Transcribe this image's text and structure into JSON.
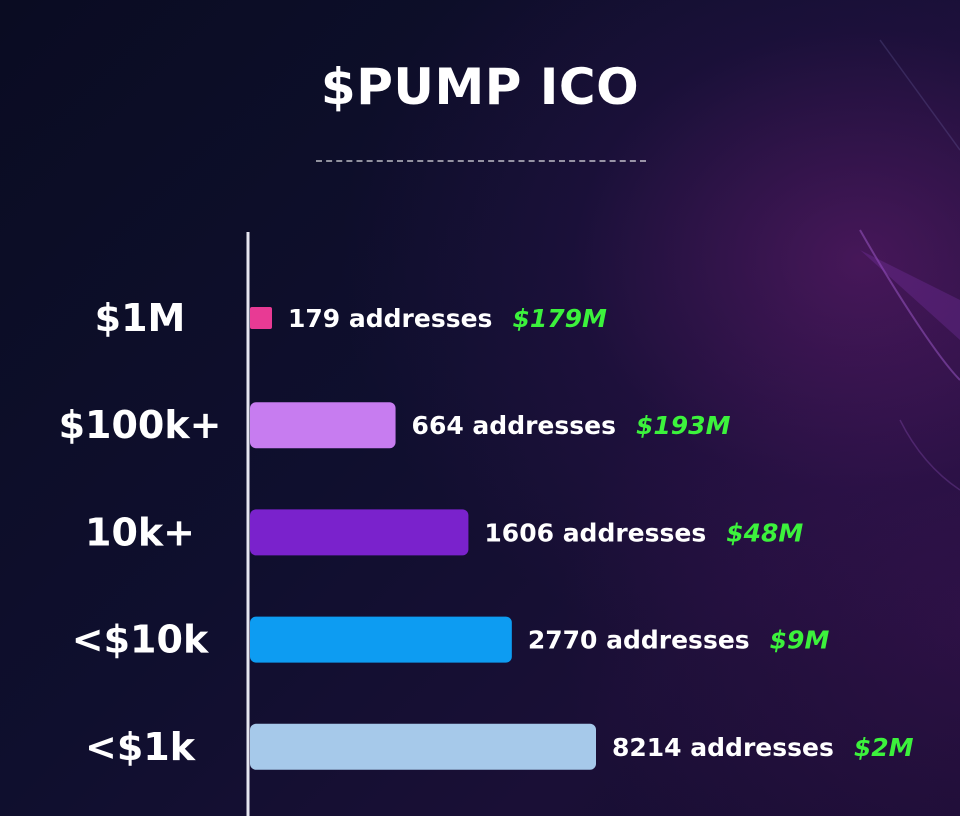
{
  "chart_data": {
    "type": "bar",
    "orientation": "horizontal",
    "title": "$PUMP ICO",
    "categories": [
      "$1M",
      "$100k+",
      "10k+",
      "<$10k",
      "<$1k"
    ],
    "series": [
      {
        "values": [
          179,
          664,
          1606,
          2770,
          8214
        ],
        "value_labels": [
          "179 addresses",
          "664 addresses",
          "1606 addresses",
          "2770 addresses",
          "8214 addresses"
        ],
        "amount_labels": [
          "$179M",
          "$193M",
          "$48M",
          "$9M",
          "$2M"
        ]
      }
    ],
    "colors": [
      "#e83a94",
      "#c77cf0",
      "#7a22cc",
      "#0d9cf2",
      "#a6c9ea"
    ],
    "amount_color": "#3cf23c",
    "grid": false,
    "legend": "none"
  }
}
